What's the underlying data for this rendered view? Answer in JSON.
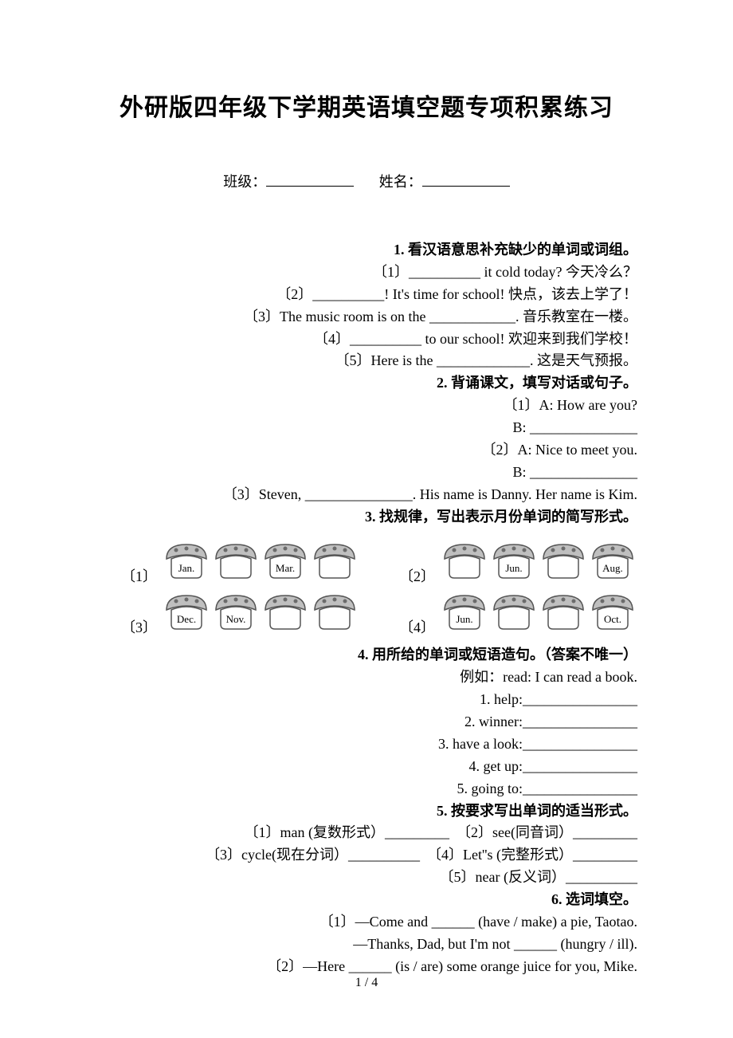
{
  "title": "外研版四年级下学期英语填空题专项积累练习",
  "meta": {
    "class_label": "班级：",
    "name_label": "姓名："
  },
  "s1": {
    "heading": "1. 看汉语意思补充缺少的单词或词组。",
    "l1": "〔1〕__________ it cold today? 今天冷么？",
    "l2": "〔2〕__________! It's time for school! 快点，该去上学了！",
    "l3": "〔3〕The music room is on the ____________. 音乐教室在一楼。",
    "l4": "〔4〕__________ to our school! 欢迎来到我们学校！",
    "l5": "〔5〕Here is the _____________. 这是天气预报。"
  },
  "s2": {
    "heading": "2. 背诵课文，填写对话或句子。",
    "l1": "〔1〕A: How are you?",
    "l2": "B: _______________",
    "l3": "〔2〕A: Nice to meet you.",
    "l4": "B: _______________",
    "l5": "〔3〕Steven, _______________. His name is Danny. Her name is Kim."
  },
  "s3": {
    "heading": "3. 找规律，写出表示月份单词的简写形式。",
    "rows": [
      {
        "left_idx": "〔1〕",
        "left": [
          "Jan.",
          "",
          "Mar.",
          ""
        ],
        "right_idx": "〔2〕",
        "right": [
          "",
          "Jun.",
          "",
          "Aug."
        ]
      },
      {
        "left_idx": "〔3〕",
        "left": [
          "Dec.",
          "Nov.",
          "",
          ""
        ],
        "right_idx": "〔4〕",
        "right": [
          "Jun.",
          "",
          "",
          "Oct."
        ]
      }
    ]
  },
  "s4": {
    "heading": "4. 用所给的单词或短语造句。（答案不唯一）",
    "example": "例如：read: I can read a book.",
    "l1": "1. help:________________",
    "l2": "2. winner:________________",
    "l3": "3. have a look:________________",
    "l4": "4. get up:________________",
    "l5": "5. going to:________________"
  },
  "s5": {
    "heading": "5. 按要求写出单词的适当形式。",
    "l1": "〔1〕man (复数形式）_________　〔2〕see(同音词）_________",
    "l2": "〔3〕cycle(现在分词）__________　〔4〕Let''s (完整形式）_________",
    "l3": "〔5〕near (反义词）__________"
  },
  "s6": {
    "heading": "6. 选词填空。",
    "l1": "〔1〕—Come and ______ (have / make) a pie, Taotao.",
    "l2": "—Thanks, Dad, but I'm not ______ (hungry / ill).",
    "l3": "〔2〕—Here ______ (is / are) some orange juice for you, Mike."
  },
  "pagenum": "1 / 4",
  "mushroom": {
    "cap_color": "#bfbfbf",
    "stroke": "#555555",
    "spot_color": "#6b6b6b",
    "stem_bg": "#ffffff"
  }
}
